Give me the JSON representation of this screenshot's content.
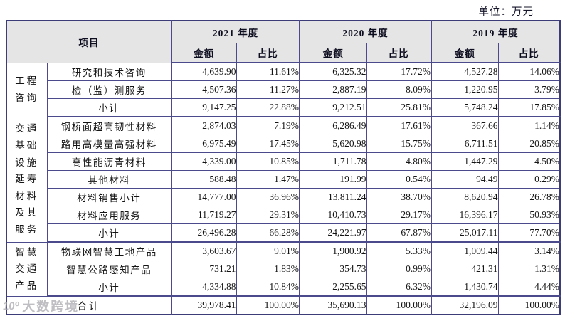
{
  "unit_label": "单位：万元",
  "watermark": {
    "logo": "10⁰",
    "text": "大数跨境"
  },
  "table": {
    "item_header": "项目",
    "year_headers": [
      "2021 年度",
      "2020 年度",
      "2019 年度"
    ],
    "sub_headers": {
      "amount": "金额",
      "ratio": "占比"
    },
    "groups": [
      {
        "id": "engineering-consulting",
        "label": "工程咨询",
        "label_lines": [
          "工程",
          "咨询"
        ],
        "rows": [
          {
            "label": "研究和技术咨询",
            "bold": false,
            "cells": [
              "4,639.90",
              "11.61%",
              "6,325.32",
              "17.72%",
              "4,527.28",
              "14.06%"
            ]
          },
          {
            "label": "检（监）测服务",
            "bold": false,
            "cells": [
              "4,507.36",
              "11.27%",
              "2,887.19",
              "8.09%",
              "1,220.95",
              "3.79%"
            ]
          },
          {
            "label": "小计",
            "bold": true,
            "cells": [
              "9,147.25",
              "22.88%",
              "9,212.51",
              "25.81%",
              "5,748.24",
              "17.85%"
            ]
          }
        ]
      },
      {
        "id": "infrastructure-materials",
        "label": "交通基础设施延寿材料及其服务",
        "label_lines": [
          "交通",
          "基础",
          "设施",
          "延寿",
          "材料",
          "及其",
          "服务"
        ],
        "rows": [
          {
            "label": "钢桥面超高韧性材料",
            "bold": false,
            "cells": [
              "2,874.03",
              "7.19%",
              "6,286.49",
              "17.61%",
              "367.66",
              "1.14%"
            ]
          },
          {
            "label": "路用高模量高强材料",
            "bold": false,
            "cells": [
              "6,975.49",
              "17.45%",
              "5,620.98",
              "15.75%",
              "6,711.51",
              "20.85%"
            ]
          },
          {
            "label": "高性能沥青材料",
            "bold": false,
            "cells": [
              "4,339.00",
              "10.85%",
              "1,711.78",
              "4.80%",
              "1,447.29",
              "4.50%"
            ]
          },
          {
            "label": "其他材料",
            "bold": false,
            "cells": [
              "588.48",
              "1.47%",
              "191.99",
              "0.54%",
              "94.49",
              "0.29%"
            ]
          },
          {
            "label": "材料销售小计",
            "bold": false,
            "cells": [
              "14,777.00",
              "36.96%",
              "13,811.24",
              "38.70%",
              "8,620.94",
              "26.78%"
            ]
          },
          {
            "label": "材料应用服务",
            "bold": false,
            "cells": [
              "11,719.27",
              "29.31%",
              "10,410.73",
              "29.17%",
              "16,396.17",
              "50.93%"
            ]
          },
          {
            "label": "小计",
            "bold": true,
            "cells": [
              "26,496.28",
              "66.28%",
              "24,221.97",
              "67.87%",
              "25,017.11",
              "77.70%"
            ]
          }
        ]
      },
      {
        "id": "smart-traffic-products",
        "label": "智慧交通产品",
        "label_lines": [
          "智慧",
          "交通",
          "产品"
        ],
        "rows": [
          {
            "label": "物联网智慧工地产品",
            "bold": false,
            "cells": [
              "3,603.67",
              "9.01%",
              "1,900.92",
              "5.33%",
              "1,009.44",
              "3.14%"
            ]
          },
          {
            "label": "智慧公路感知产品",
            "bold": false,
            "cells": [
              "731.21",
              "1.83%",
              "354.73",
              "0.99%",
              "421.31",
              "1.31%"
            ]
          },
          {
            "label": "小计",
            "bold": true,
            "normal_cells": [
              5
            ],
            "cells": [
              "4,334.88",
              "10.84%",
              "2,255.65",
              "6.32%",
              "1,430.74",
              "4.44%"
            ]
          }
        ]
      }
    ],
    "total": {
      "label": "合计",
      "bold": true,
      "cells": [
        "39,978.41",
        "100.00%",
        "35,690.13",
        "100.00%",
        "32,196.09",
        "100.00%"
      ]
    }
  }
}
